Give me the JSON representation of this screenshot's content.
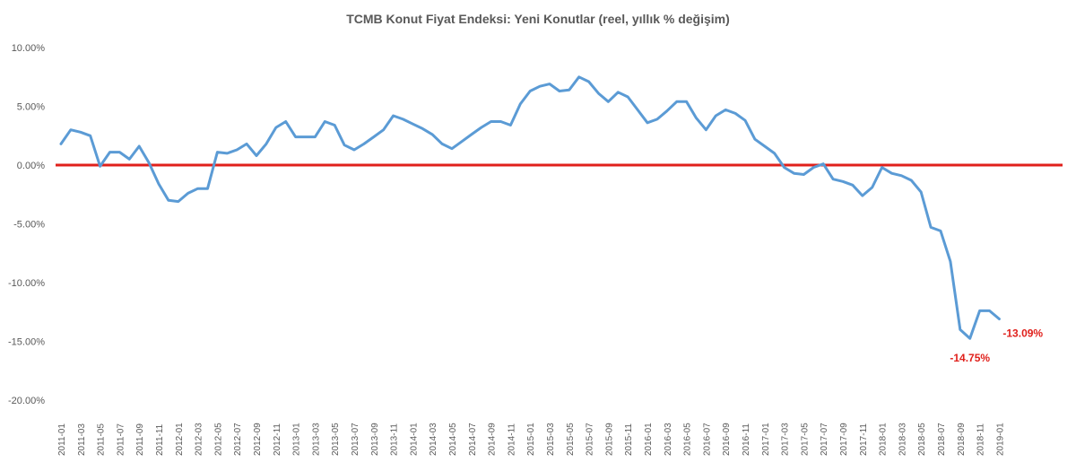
{
  "chart_data": {
    "type": "line",
    "title": "TCMB Konut Fiyat Endeksi: Yeni Konutlar (reel, yıllık % değişim)",
    "ylim": [
      -20,
      10
    ],
    "yticks": [
      "10.00%",
      "5.00%",
      "0.00%",
      "-5.00%",
      "-10.00%",
      "-15.00%",
      "-20.00%"
    ],
    "ytick_values": [
      10,
      5,
      0,
      -5,
      -10,
      -15,
      -20
    ],
    "xtick_labels": [
      "2011-01",
      "2011-03",
      "2011-05",
      "2011-07",
      "2011-09",
      "2011-11",
      "2012-01",
      "2012-03",
      "2012-05",
      "2012-07",
      "2012-09",
      "2012-11",
      "2013-01",
      "2013-03",
      "2013-05",
      "2013-07",
      "2013-09",
      "2013-11",
      "2014-01",
      "2014-03",
      "2014-05",
      "2014-07",
      "2014-09",
      "2014-11",
      "2015-01",
      "2015-03",
      "2015-05",
      "2015-07",
      "2015-09",
      "2015-11",
      "2016-01",
      "2016-03",
      "2016-05",
      "2016-07",
      "2016-09",
      "2016-11",
      "2017-01",
      "2017-03",
      "2017-05",
      "2017-07",
      "2017-09",
      "2017-11",
      "2018-01",
      "2018-03",
      "2018-05",
      "2018-07",
      "2018-09",
      "2018-11",
      "2019-01"
    ],
    "grid": false,
    "legend": "none",
    "series": [
      {
        "color": "#5b9bd5",
        "values": [
          1.8,
          3.0,
          2.8,
          2.5,
          -0.1,
          1.1,
          1.1,
          0.5,
          1.6,
          0.2,
          -1.6,
          -3.0,
          -3.1,
          -2.4,
          -2.0,
          -2.0,
          1.1,
          1.0,
          1.3,
          1.8,
          0.8,
          1.8,
          3.2,
          3.7,
          2.4,
          2.4,
          2.4,
          3.7,
          3.4,
          1.7,
          1.3,
          1.8,
          2.4,
          3.0,
          4.2,
          3.9,
          3.5,
          3.1,
          2.6,
          1.8,
          1.4,
          2.0,
          2.6,
          3.2,
          3.7,
          3.7,
          3.4,
          5.2,
          6.3,
          6.7,
          6.9,
          6.3,
          6.4,
          7.5,
          7.1,
          6.1,
          5.4,
          6.2,
          5.8,
          4.7,
          3.6,
          3.9,
          4.6,
          5.4,
          5.4,
          4.0,
          3.0,
          4.2,
          4.7,
          4.4,
          3.8,
          2.2,
          1.6,
          1.0,
          -0.2,
          -0.7,
          -0.8,
          -0.2,
          0.1,
          -1.2,
          -1.4,
          -1.7,
          -2.6,
          -1.9,
          -0.2,
          -0.7,
          -0.9,
          -1.3,
          -2.3,
          -5.3,
          -5.6,
          -8.2,
          -14.0,
          -14.75,
          -12.4,
          -12.4,
          -13.09
        ]
      },
      {
        "color": "#e0201b",
        "values": [
          0,
          0
        ]
      }
    ],
    "annotations": [
      {
        "text": "-14.75%",
        "index": 93,
        "value": -14.75
      },
      {
        "text": "-13.09%",
        "index": 96,
        "value": -13.09
      }
    ]
  }
}
